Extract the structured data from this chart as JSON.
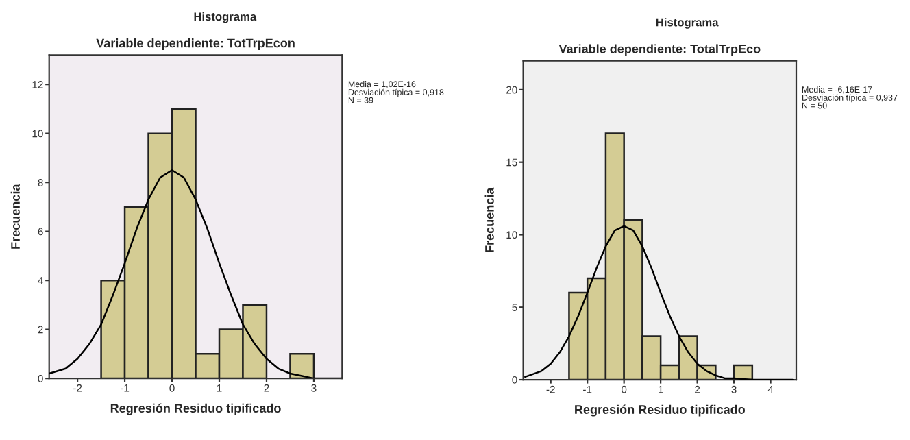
{
  "chart_data": [
    {
      "type": "histogram",
      "title": "Histograma",
      "subtitle": "Variable dependiente: TotTrpEcon",
      "xlabel": "Regresión Residuo tipificado",
      "ylabel": "Frecuencia",
      "bins": [
        -1.5,
        -1,
        -0.5,
        0,
        0.5,
        1,
        1.5,
        2,
        2.5,
        3
      ],
      "values": [
        4,
        7,
        10,
        11,
        1,
        2,
        3,
        0,
        1
      ],
      "color": "#d4cc94",
      "series": [
        {
          "type": "line",
          "color": "#000000",
          "x": [
            -2.6,
            -2.25,
            -2,
            -1.75,
            -1.5,
            -1.25,
            -1,
            -0.75,
            -0.5,
            -0.25,
            0,
            0.25,
            0.5,
            0.75,
            1,
            1.25,
            1.5,
            1.75,
            2,
            2.25,
            2.5,
            2.75,
            3,
            3.3,
            3.6
          ],
          "values": [
            0.2,
            0.4,
            0.8,
            1.4,
            2.2,
            3.4,
            4.7,
            6.1,
            7.3,
            8.2,
            8.5,
            8.2,
            7.3,
            6.1,
            4.7,
            3.4,
            2.2,
            1.4,
            0.8,
            0.4,
            0.2,
            0.1,
            0,
            0,
            0
          ]
        }
      ],
      "xlim": [
        -2.6,
        3.6
      ],
      "ylim": [
        0,
        13.2
      ],
      "xticks": [
        -2,
        -1,
        0,
        1,
        2,
        3
      ],
      "yticks": [
        0,
        2,
        4,
        6,
        8,
        10,
        12
      ],
      "grid": false,
      "legend": false,
      "annotations": [
        "Media = 1,02E-16",
        "Desviación típica = 0,918",
        "N = 39"
      ]
    },
    {
      "type": "histogram",
      "title": "Histograma",
      "subtitle": "Variable dependiente: TotalTrpEco",
      "xlabel": "Regresión Residuo tipificado",
      "ylabel": "Frecuencia",
      "bins": [
        -1.5,
        -1,
        -0.5,
        0,
        0.5,
        1,
        1.5,
        2,
        2.5,
        3,
        3.5
      ],
      "values": [
        6,
        7,
        17,
        11,
        3,
        1,
        3,
        1,
        0,
        1
      ],
      "color": "#d4cc94",
      "series": [
        {
          "type": "line",
          "color": "#000000",
          "x": [
            -2.7,
            -2.25,
            -2,
            -1.75,
            -1.5,
            -1.25,
            -1,
            -0.75,
            -0.5,
            -0.25,
            0,
            0.25,
            0.5,
            0.75,
            1,
            1.25,
            1.5,
            1.75,
            2,
            2.25,
            2.5,
            2.75,
            3,
            3.5,
            4,
            4.6
          ],
          "values": [
            0.2,
            0.6,
            1.1,
            1.9,
            3,
            4.4,
            6,
            7.7,
            9.2,
            10.3,
            10.6,
            10.3,
            9.2,
            7.7,
            6,
            4.4,
            3,
            1.9,
            1.1,
            0.6,
            0.3,
            0.1,
            0.1,
            0,
            0,
            0
          ]
        }
      ],
      "xlim": [
        -2.75,
        4.7
      ],
      "ylim": [
        0,
        22
      ],
      "xticks": [
        -2,
        -1,
        0,
        1,
        2,
        3,
        4
      ],
      "yticks": [
        0,
        5,
        10,
        15,
        20
      ],
      "grid": false,
      "legend": false,
      "annotations": [
        "Media = -6,16E-17",
        "Desviación típica = 0,937",
        "N = 50"
      ]
    }
  ]
}
